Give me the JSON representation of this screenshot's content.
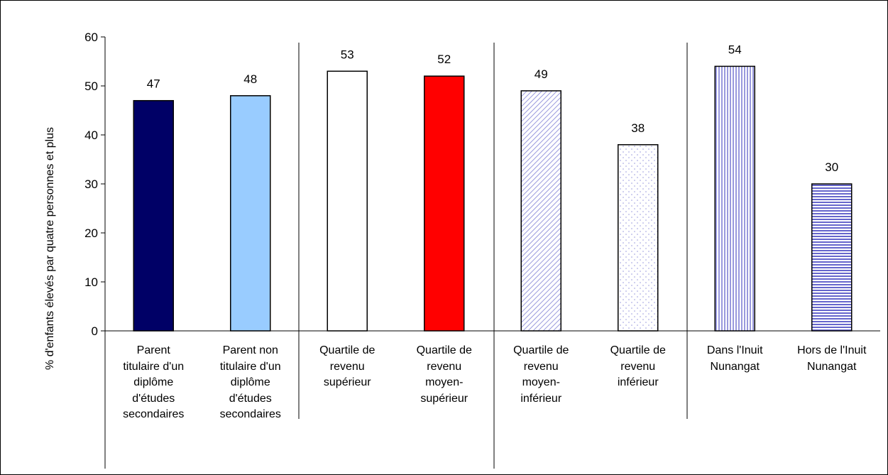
{
  "chart_data": {
    "type": "bar",
    "ylabel": "% d'enfants élevés par quatre personnes et plus",
    "categories": [
      "Parent titulaire d'un diplôme d'études secondaires",
      "Parent non titulaire d'un diplôme d'études secondaires",
      "Quartile de revenu supérieur",
      "Quartile de revenu moyen-supérieur",
      "Quartile de revenu moyen-inférieur",
      "Quartile de revenu inférieur",
      "Dans l'Inuit Nunangat",
      "Hors de l'Inuit Nunangat"
    ],
    "values": [
      47,
      48,
      53,
      52,
      49,
      38,
      54,
      30
    ],
    "colors": [
      "#000066",
      "#99ccff",
      "#ffffff",
      "#ff0000",
      "#9999dd",
      "#9999dd",
      "#9999dd",
      "#6666cc"
    ],
    "patterns": [
      "solid",
      "solid",
      "solid",
      "solid",
      "diagonal",
      "dots",
      "vertical",
      "horizontal"
    ],
    "ylim": [
      0,
      60
    ],
    "yticks": [
      0,
      10,
      20,
      30,
      40,
      50,
      60
    ],
    "grid": false
  }
}
